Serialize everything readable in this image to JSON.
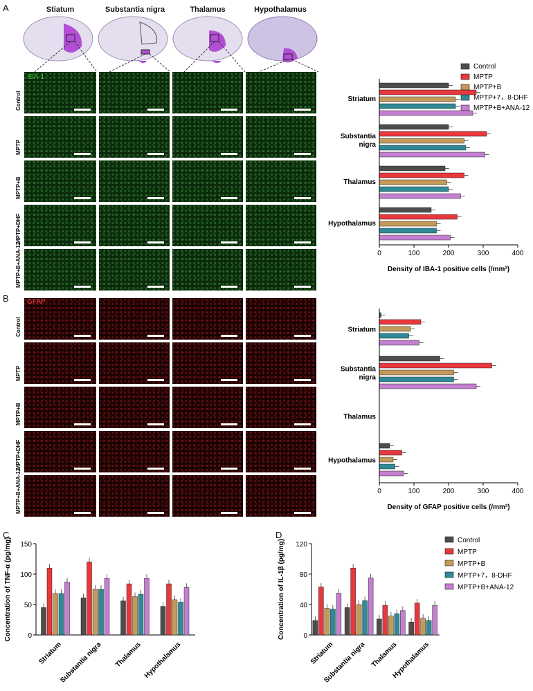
{
  "panels": {
    "a": "A",
    "b": "B",
    "c": "C",
    "d": "D"
  },
  "regions": [
    "Stiatum",
    "Substantia nigra",
    "Thalamus",
    "Hypothalamus"
  ],
  "row_labels": [
    "Control",
    "MPTP",
    "MPTP+B",
    "MPTP+DHF",
    "MPTP+B+ANA-12"
  ],
  "stains": {
    "a": "IBA-1",
    "b": "GFAP"
  },
  "colors": {
    "Control": "#4d4d4d",
    "MPTP": "#e8383d",
    "MPTP+B": "#c49a5a",
    "MPTP+7, 8-DHF": "#2f8a96",
    "MPTP+B+ANA-12": "#c47fd0",
    "brain_fill": "#ddd6ea",
    "highlight": "#b24fd6"
  },
  "legend_top": [
    "Control",
    "MPTP",
    "MPTP+B",
    "MPTP+7，8-DHF",
    "MPTP+B+ANA-12"
  ],
  "legend_d": [
    "Control",
    "MPTP",
    "MPTP+B",
    "MPTP+7，8-DHF",
    "MPTP+B+ANA-12"
  ],
  "chart_data": [
    {
      "id": "A",
      "type": "bar",
      "orientation": "horizontal",
      "categories": [
        "Striatum",
        "Substantia\nnigra",
        "Thalamus",
        "Hypothalamus"
      ],
      "series": [
        {
          "name": "Control",
          "values": [
            200,
            200,
            190,
            150
          ]
        },
        {
          "name": "MPTP",
          "values": [
            280,
            310,
            245,
            225
          ]
        },
        {
          "name": "MPTP+B",
          "values": [
            220,
            245,
            195,
            165
          ]
        },
        {
          "name": "MPTP+7，8-DHF",
          "values": [
            220,
            250,
            200,
            165
          ]
        },
        {
          "name": "MPTP+B+ANA-12",
          "values": [
            270,
            305,
            235,
            205
          ]
        }
      ],
      "xlim": [
        0,
        400
      ],
      "xticks": [
        0,
        100,
        200,
        300,
        400
      ],
      "xlabel": "Density of IBA-1 positive cells (/mm²)"
    },
    {
      "id": "B",
      "type": "bar",
      "orientation": "horizontal",
      "categories": [
        "Striatum",
        "Substantia\nnigra",
        "Thalamus",
        "Hypothalamus"
      ],
      "series": [
        {
          "name": "Control",
          "values": [
            5,
            175,
            0,
            30
          ]
        },
        {
          "name": "MPTP",
          "values": [
            120,
            325,
            0,
            65
          ]
        },
        {
          "name": "MPTP+B",
          "values": [
            90,
            215,
            0,
            40
          ]
        },
        {
          "name": "MPTP+7，8-DHF",
          "values": [
            85,
            215,
            0,
            45
          ]
        },
        {
          "name": "MPTP+B+ANA-12",
          "values": [
            115,
            280,
            0,
            70
          ]
        }
      ],
      "xlim": [
        0,
        400
      ],
      "xticks": [
        0,
        100,
        200,
        300,
        400
      ],
      "xlabel": "Density of GFAP positive cells (/mm²)"
    },
    {
      "id": "C",
      "type": "bar",
      "categories": [
        "Striatum",
        "Substantia nigra",
        "Thalamus",
        "Hypothalamus"
      ],
      "series": [
        {
          "name": "Control",
          "values": [
            45,
            61,
            56,
            47
          ]
        },
        {
          "name": "MPTP",
          "values": [
            110,
            120,
            84,
            84
          ]
        },
        {
          "name": "MPTP+B",
          "values": [
            68,
            75,
            63,
            58
          ]
        },
        {
          "name": "MPTP+7，8-DHF",
          "values": [
            68,
            75,
            67,
            54
          ]
        },
        {
          "name": "MPTP+B+ANA-12",
          "values": [
            87,
            93,
            93,
            78
          ]
        }
      ],
      "ylim": [
        0,
        150
      ],
      "yticks": [
        0,
        50,
        100,
        150
      ],
      "ylabel": "Concentration of TNF-α (pg/mg)"
    },
    {
      "id": "D",
      "type": "bar",
      "categories": [
        "Striatum",
        "Substantia nigra",
        "Thalamus",
        "Hypothalamus"
      ],
      "series": [
        {
          "name": "Control",
          "values": [
            19,
            36,
            21,
            17
          ]
        },
        {
          "name": "MPTP",
          "values": [
            63,
            88,
            39,
            42
          ]
        },
        {
          "name": "MPTP+B",
          "values": [
            35,
            40,
            25,
            22
          ]
        },
        {
          "name": "MPTP+7，8-DHF",
          "values": [
            34,
            45,
            28,
            19
          ]
        },
        {
          "name": "MPTP+B+ANA-12",
          "values": [
            55,
            75,
            32,
            39
          ]
        }
      ],
      "ylim": [
        0,
        120
      ],
      "yticks": [
        0,
        40,
        80,
        120
      ],
      "ylabel": "Concentration of IL-1β (pg/mg)"
    }
  ],
  "sig": {
    "star1": "*",
    "star2": "**",
    "star3": "***",
    "star4": "****",
    "hash": "#"
  }
}
